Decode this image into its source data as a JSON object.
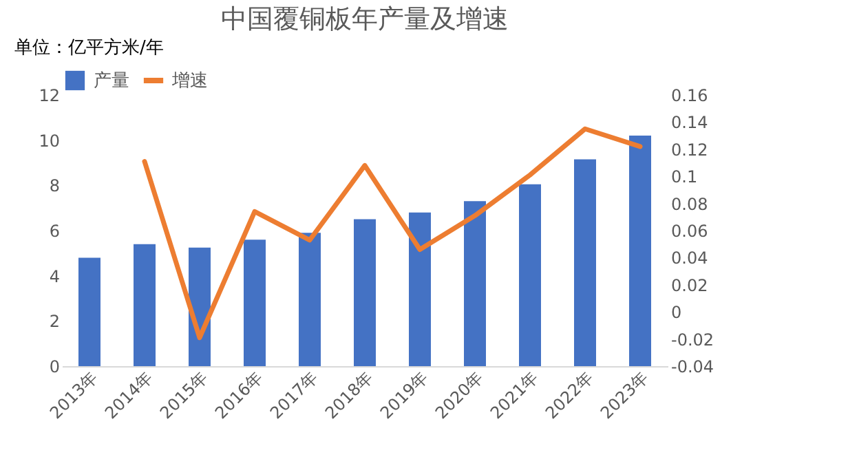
{
  "chart_data": {
    "type": "bar",
    "title": "中国覆铜板年产量及增速",
    "ylabel": "单位：亿平方米/年",
    "categories": [
      "2013年",
      "2014年",
      "2015年",
      "2016年",
      "2017年",
      "2018年",
      "2019年",
      "2020年",
      "2021年",
      "2022年",
      "2023年"
    ],
    "series": [
      {
        "name": "产量",
        "color": "#4472c4",
        "values": [
          4.8,
          5.4,
          5.25,
          5.6,
          5.9,
          6.5,
          6.8,
          7.3,
          8.05,
          9.15,
          10.2
        ]
      },
      {
        "name": "增速",
        "type": "line",
        "axis": "y2",
        "color": "#ed7d31",
        "values": [
          null,
          0.111,
          -0.019,
          0.074,
          0.053,
          0.108,
          0.046,
          0.071,
          0.101,
          0.135,
          0.122
        ]
      }
    ],
    "ylim": [
      0,
      12
    ],
    "yticks": [
      0,
      2,
      4,
      6,
      8,
      10,
      12
    ],
    "y2lim": [
      -0.04,
      0.16
    ],
    "y2ticks": [
      -0.04,
      -0.02,
      0,
      0.02,
      0.04,
      0.06,
      0.08,
      0.1,
      0.12,
      0.14,
      0.16
    ],
    "legend": "top",
    "grid": false,
    "marker": "none",
    "line_style": "solid"
  }
}
